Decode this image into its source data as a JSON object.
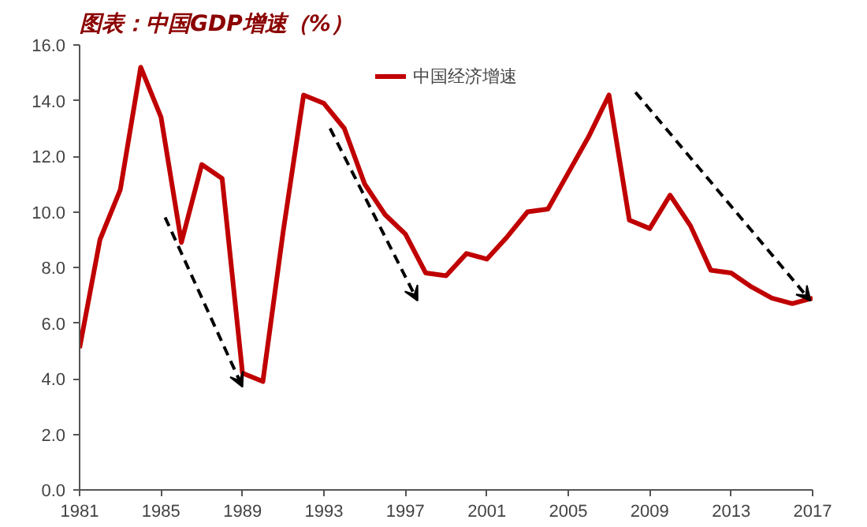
{
  "chart_data": {
    "type": "line",
    "title": "图表：中国GDP增速（%）",
    "x": [
      1981,
      1982,
      1983,
      1984,
      1985,
      1986,
      1987,
      1988,
      1989,
      1990,
      1991,
      1992,
      1993,
      1994,
      1995,
      1996,
      1997,
      1998,
      1999,
      2000,
      2001,
      2002,
      2003,
      2004,
      2005,
      2006,
      2007,
      2008,
      2009,
      2010,
      2011,
      2012,
      2013,
      2014,
      2015,
      2016,
      2017
    ],
    "series": [
      {
        "name": "中国经济增速",
        "color": "#c00000",
        "values": [
          5.1,
          9.0,
          10.8,
          15.2,
          13.4,
          8.9,
          11.7,
          11.2,
          4.2,
          3.9,
          9.3,
          14.2,
          13.9,
          13.0,
          11.0,
          9.9,
          9.2,
          7.8,
          7.7,
          8.5,
          8.3,
          9.1,
          10.0,
          10.1,
          11.4,
          12.7,
          14.2,
          9.7,
          9.4,
          10.6,
          9.5,
          7.9,
          7.8,
          7.3,
          6.9,
          6.7,
          6.9
        ]
      }
    ],
    "xlim": [
      1981,
      2017
    ],
    "xticks": [
      1981,
      1985,
      1989,
      1993,
      1997,
      2001,
      2005,
      2009,
      2013,
      2017
    ],
    "ylim": [
      0,
      16
    ],
    "yticks": [
      {
        "value": 0,
        "label": "0.0"
      },
      {
        "value": 2,
        "label": "2.0"
      },
      {
        "value": 4,
        "label": "4.0"
      },
      {
        "value": 6,
        "label": "6.0"
      },
      {
        "value": 8,
        "label": "8.0"
      },
      {
        "value": 10,
        "label": "10.0"
      },
      {
        "value": 12,
        "label": "12.0"
      },
      {
        "value": 14,
        "label": "14.0"
      },
      {
        "value": 16,
        "label": "16.0"
      }
    ],
    "grid": false,
    "legend": "top",
    "marker": "none",
    "line_style": "solid"
  }
}
